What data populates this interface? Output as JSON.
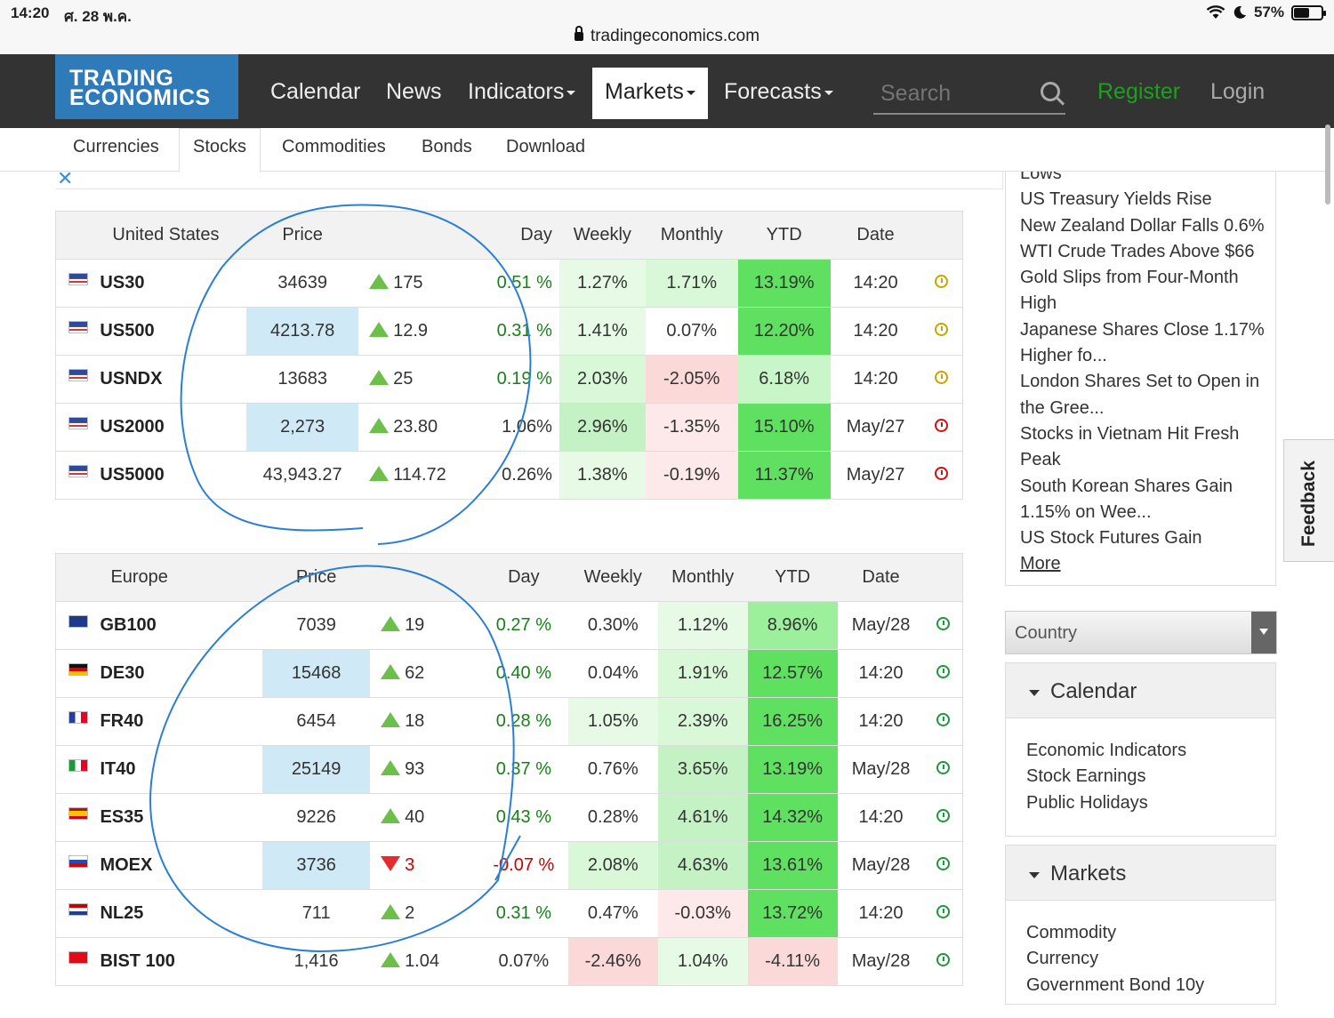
{
  "status": {
    "time": "14:20",
    "date": "ศ. 28 พ.ค.",
    "battery": "57%",
    "battery_level": 0.57
  },
  "browser": {
    "url": "tradingeconomics.com"
  },
  "logo": {
    "line1": "TRADING",
    "line2": "ECONOMICS"
  },
  "nav": {
    "calendar": "Calendar",
    "news": "News",
    "indicators": "Indicators",
    "markets": "Markets",
    "forecasts": "Forecasts",
    "search_placeholder": "Search",
    "register": "Register",
    "login": "Login"
  },
  "subnav": [
    "Currencies",
    "Stocks",
    "Commodities",
    "Bonds",
    "Download"
  ],
  "us_table": {
    "headers": [
      "United States",
      "Price",
      "",
      "Day",
      "Weekly",
      "Monthly",
      "YTD",
      "Date"
    ],
    "rows": [
      {
        "symbol": "US30",
        "price": "34639",
        "change": "175",
        "dir": "up",
        "day": "0.51 %",
        "weekly": "1.27%",
        "monthly": "1.71%",
        "ytd": "13.19%",
        "date": "14:20",
        "clock": "gold"
      },
      {
        "symbol": "US500",
        "price": "4213.78",
        "change": "12.9",
        "dir": "up",
        "day": "0.31 %",
        "weekly": "1.41%",
        "monthly": "0.07%",
        "ytd": "12.20%",
        "date": "14:20",
        "clock": "gold"
      },
      {
        "symbol": "USNDX",
        "price": "13683",
        "change": "25",
        "dir": "up",
        "day": "0.19 %",
        "weekly": "2.03%",
        "monthly": "-2.05%",
        "ytd": "6.18%",
        "date": "14:20",
        "clock": "gold"
      },
      {
        "symbol": "US2000",
        "price": "2,273",
        "change": "23.80",
        "dir": "up",
        "day": "1.06%",
        "weekly": "2.96%",
        "monthly": "-1.35%",
        "ytd": "15.10%",
        "date": "May/27",
        "clock": "red"
      },
      {
        "symbol": "US5000",
        "price": "43,943.27",
        "change": "114.72",
        "dir": "up",
        "day": "0.26%",
        "weekly": "1.38%",
        "monthly": "-0.19%",
        "ytd": "11.37%",
        "date": "May/27",
        "clock": "red"
      }
    ]
  },
  "eu_table": {
    "headers": [
      "Europe",
      "Price",
      "",
      "Day",
      "Weekly",
      "Monthly",
      "YTD",
      "Date"
    ],
    "rows": [
      {
        "symbol": "GB100",
        "price": "7039",
        "change": "19",
        "dir": "up",
        "day": "0.27 %",
        "weekly": "0.30%",
        "monthly": "1.12%",
        "ytd": "8.96%",
        "date": "May/28"
      },
      {
        "symbol": "DE30",
        "price": "15468",
        "change": "62",
        "dir": "up",
        "day": "0.40 %",
        "weekly": "0.04%",
        "monthly": "1.91%",
        "ytd": "12.57%",
        "date": "14:20"
      },
      {
        "symbol": "FR40",
        "price": "6454",
        "change": "18",
        "dir": "up",
        "day": "0.28 %",
        "weekly": "1.05%",
        "monthly": "2.39%",
        "ytd": "16.25%",
        "date": "14:20"
      },
      {
        "symbol": "IT40",
        "price": "25149",
        "change": "93",
        "dir": "up",
        "day": "0.37 %",
        "weekly": "0.76%",
        "monthly": "3.65%",
        "ytd": "13.19%",
        "date": "May/28"
      },
      {
        "symbol": "ES35",
        "price": "9226",
        "change": "40",
        "dir": "up",
        "day": "0.43 %",
        "weekly": "0.28%",
        "monthly": "4.61%",
        "ytd": "14.32%",
        "date": "14:20"
      },
      {
        "symbol": "MOEX",
        "price": "3736",
        "change": "3",
        "dir": "down",
        "day": "-0.07 %",
        "weekly": "2.08%",
        "monthly": "4.63%",
        "ytd": "13.61%",
        "date": "May/28"
      },
      {
        "symbol": "NL25",
        "price": "711",
        "change": "2",
        "dir": "up",
        "day": "0.31 %",
        "weekly": "0.47%",
        "monthly": "-0.03%",
        "ytd": "13.72%",
        "date": "14:20"
      },
      {
        "symbol": "BIST 100",
        "price": "1,416",
        "change": "1.04",
        "dir": "up",
        "day": "0.07%",
        "weekly": "-2.46%",
        "monthly": "1.04%",
        "ytd": "-4.11%",
        "date": "May/28"
      }
    ]
  },
  "news": {
    "items": [
      "Lows",
      "US Treasury Yields Rise",
      "New Zealand Dollar Falls 0.6%",
      "WTI Crude Trades Above $66",
      "Gold Slips from Four-Month High",
      "Japanese Shares Close 1.17% Higher fo...",
      "London Shares Set to Open in the Gree...",
      "Stocks in Vietnam Hit Fresh Peak",
      "South Korean Shares Gain 1.15% on Wee...",
      "US Stock Futures Gain"
    ],
    "more": "More"
  },
  "country_select": "Country",
  "calendar_panel": {
    "title": "Calendar",
    "items": [
      "Economic Indicators",
      "Stock Earnings",
      "Public Holidays"
    ]
  },
  "markets_panel": {
    "title": "Markets",
    "items": [
      "Commodity",
      "Currency",
      "Government Bond 10y"
    ]
  },
  "feedback": "Feedback",
  "colors": {
    "brand": "#2f7ab9",
    "nav_bg": "#333333",
    "register": "#1aa31a",
    "annotation": "#2a7fd4",
    "up": "#6cc04a",
    "down": "#e52b2b"
  }
}
